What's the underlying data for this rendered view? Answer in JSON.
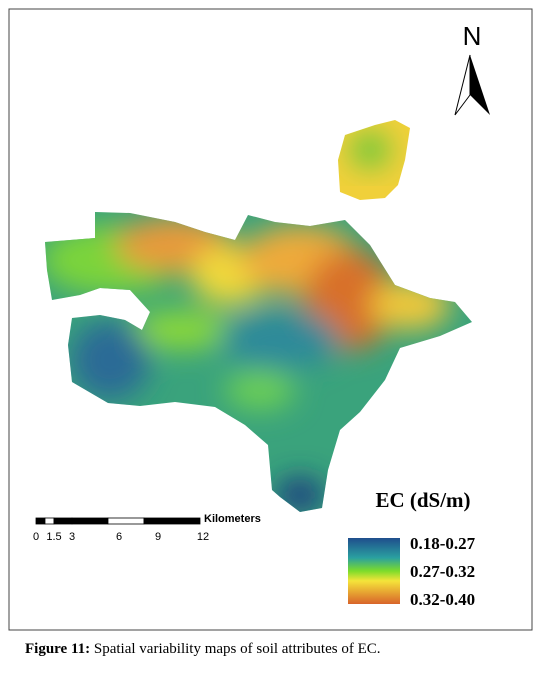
{
  "north": "N",
  "legend": {
    "title": "EC (dS/m)",
    "classes": [
      "0.18-0.27",
      "0.27-0.32",
      "0.32-0.40"
    ]
  },
  "scale_bar": {
    "unit": "Kilometers",
    "labels": [
      "0",
      "1.5",
      "3",
      "6",
      "9",
      "12"
    ]
  },
  "caption": {
    "label": "Figure 11:",
    "text": "Spatial variability maps of soil attributes of EC."
  }
}
